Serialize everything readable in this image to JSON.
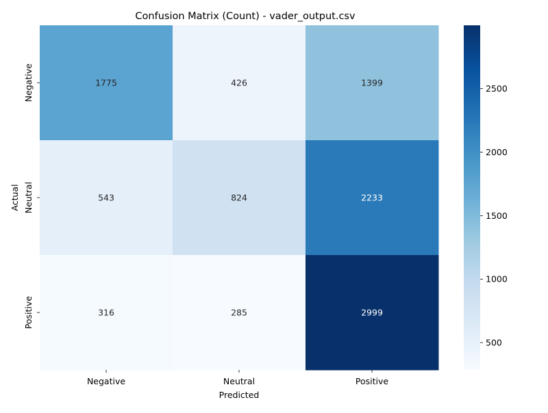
{
  "chart_data": {
    "type": "heatmap",
    "title": "Confusion Matrix (Count) - vader_output.csv",
    "xlabel": "Predicted",
    "ylabel": "Actual",
    "x_categories": [
      "Negative",
      "Neutral",
      "Positive"
    ],
    "y_categories": [
      "Negative",
      "Neutral",
      "Positive"
    ],
    "values": [
      [
        1775,
        426,
        1399
      ],
      [
        543,
        824,
        2233
      ],
      [
        316,
        285,
        2999
      ]
    ],
    "colormap": "Blues",
    "colorbar": {
      "range": [
        285,
        2999
      ],
      "ticks": [
        500,
        1000,
        1500,
        2000,
        2500
      ]
    },
    "colors": {
      "low": "#f7fbff",
      "high": "#08306b"
    }
  }
}
